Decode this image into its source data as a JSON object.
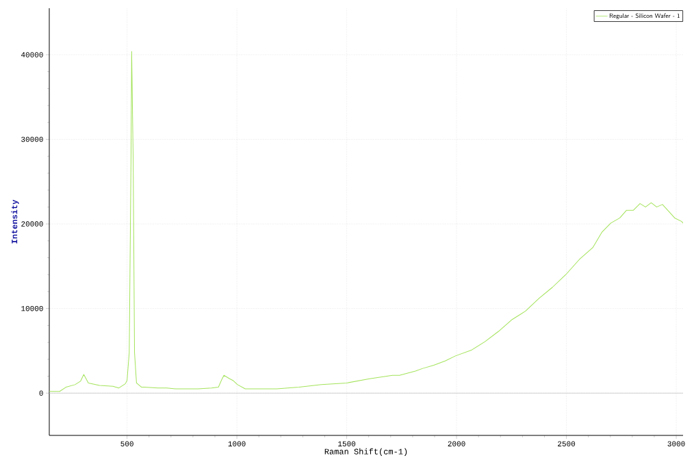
{
  "chart_data": {
    "type": "line",
    "xlabel": "Raman Shift(cm-1)",
    "ylabel": "Intensity",
    "xlim": [
      146,
      3031
    ],
    "ylim": [
      -5000,
      45500
    ],
    "xticks": [
      500,
      1000,
      1500,
      2000,
      2500,
      3000
    ],
    "yticks": [
      0,
      10000,
      20000,
      30000,
      40000
    ],
    "grid": true,
    "legend": "top right",
    "marker": "none",
    "line_style": "solid",
    "ref_lines": [
      {
        "axis": "y",
        "value": 0,
        "color": "#c0c0c0"
      }
    ],
    "series": [
      {
        "name": "Regular - Silicon Wafer - 1",
        "color": "#a3e35a",
        "x": [
          146,
          193,
          222,
          263,
          288,
          303,
          324,
          375,
          436,
          462,
          492,
          500,
          510,
          518,
          521,
          528,
          534,
          543,
          566,
          579,
          640,
          681,
          722,
          773,
          824,
          885,
          916,
          931,
          941,
          967,
          982,
          1003,
          1038,
          1089,
          1181,
          1283,
          1385,
          1500,
          1604,
          1708,
          1740,
          1813,
          1844,
          1896,
          1948,
          1995,
          2069,
          2130,
          2191,
          2253,
          2314,
          2375,
          2436,
          2497,
          2559,
          2620,
          2661,
          2702,
          2743,
          2773,
          2804,
          2835,
          2860,
          2886,
          2911,
          2937,
          2962,
          2993,
          3024,
          3031
        ],
        "values": [
          200,
          200,
          700,
          1000,
          1400,
          2200,
          1200,
          900,
          800,
          600,
          1100,
          1500,
          4800,
          27400,
          40400,
          27400,
          4800,
          1200,
          700,
          700,
          600,
          600,
          500,
          500,
          500,
          600,
          700,
          1600,
          2100,
          1700,
          1500,
          1000,
          500,
          500,
          500,
          700,
          1000,
          1200,
          1700,
          2100,
          2100,
          2600,
          2900,
          3300,
          3800,
          4400,
          5100,
          6100,
          7300,
          8700,
          9700,
          11200,
          12500,
          14000,
          15800,
          17200,
          19000,
          20100,
          20700,
          21600,
          21600,
          22400,
          22000,
          22500,
          22000,
          22300,
          21600,
          20700,
          20300,
          20100
        ]
      }
    ]
  }
}
